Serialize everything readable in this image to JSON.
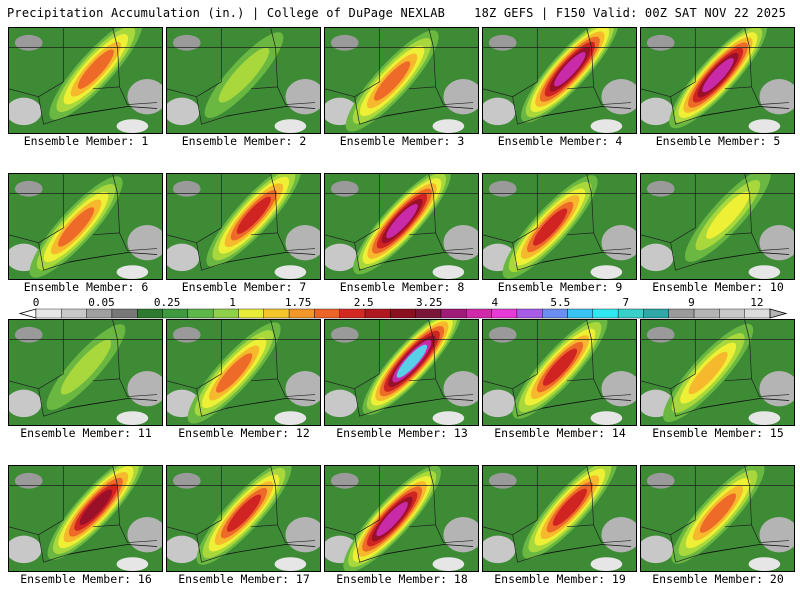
{
  "header": {
    "left": "Precipitation Accumulation (in.) | College of DuPage NEXLAB",
    "right": "18Z GEFS | F150 Valid: 00Z SAT NOV 22 2025"
  },
  "members": [
    {
      "label": "Ensemble Member: 1",
      "intensity": 0.62
    },
    {
      "label": "Ensemble Member: 2",
      "intensity": 0.28
    },
    {
      "label": "Ensemble Member: 3",
      "intensity": 0.55
    },
    {
      "label": "Ensemble Member: 4",
      "intensity": 0.85
    },
    {
      "label": "Ensemble Member: 5",
      "intensity": 0.92
    },
    {
      "label": "Ensemble Member: 6",
      "intensity": 0.6
    },
    {
      "label": "Ensemble Member: 7",
      "intensity": 0.7
    },
    {
      "label": "Ensemble Member: 8",
      "intensity": 0.85
    },
    {
      "label": "Ensemble Member: 9",
      "intensity": 0.72
    },
    {
      "label": "Ensemble Member: 10",
      "intensity": 0.4
    },
    {
      "label": "Ensemble Member: 11",
      "intensity": 0.32
    },
    {
      "label": "Ensemble Member: 12",
      "intensity": 0.58
    },
    {
      "label": "Ensemble Member: 13",
      "intensity": 0.95
    },
    {
      "label": "Ensemble Member: 14",
      "intensity": 0.7
    },
    {
      "label": "Ensemble Member: 15",
      "intensity": 0.45
    },
    {
      "label": "Ensemble Member: 16",
      "intensity": 0.8
    },
    {
      "label": "Ensemble Member: 17",
      "intensity": 0.65
    },
    {
      "label": "Ensemble Member: 18",
      "intensity": 0.85
    },
    {
      "label": "Ensemble Member: 19",
      "intensity": 0.66
    },
    {
      "label": "Ensemble Member: 20",
      "intensity": 0.64
    }
  ],
  "colorbar": {
    "labels": [
      "0",
      "0.05",
      "0.25",
      "1",
      "1.75",
      "2.5",
      "3.25",
      "4",
      "5.5",
      "7",
      "9",
      "12"
    ],
    "colors": [
      "#e6e6e6",
      "#c8c8c8",
      "#a0a0a0",
      "#787878",
      "#2e7a2e",
      "#3f9a3f",
      "#5db84a",
      "#8fd04a",
      "#e8ee38",
      "#f4c62a",
      "#f2962a",
      "#ec6428",
      "#d42822",
      "#b01820",
      "#8a1020",
      "#7a1638",
      "#a01a78",
      "#d02aa8",
      "#e83ad8",
      "#a85ae8",
      "#6a8ef2",
      "#38c4f4",
      "#30e8f0",
      "#38d0c8",
      "#30a8a8",
      "#9a9a9a",
      "#b4b4b4",
      "#c8c8c8",
      "#dcdcdc"
    ]
  }
}
